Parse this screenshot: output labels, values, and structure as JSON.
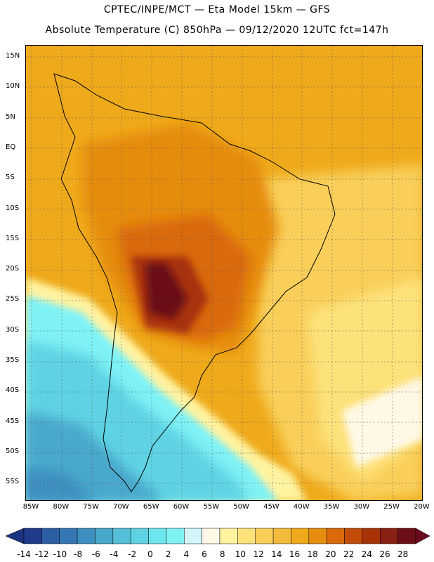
{
  "header": {
    "line1": "CPTEC/INPE/MCT —  Eta Model 15km — GFS",
    "line2": "Absolute Temperature (C) 850hPa — 09/12/2020 12UTC fct=147h"
  },
  "map": {
    "region": "South America",
    "lat_labels": [
      "15N",
      "10N",
      "5N",
      "EQ",
      "5S",
      "10S",
      "15S",
      "20S",
      "25S",
      "30S",
      "35S",
      "40S",
      "45S",
      "50S",
      "55S"
    ],
    "lon_labels": [
      "85W",
      "80W",
      "75W",
      "70W",
      "65W",
      "60W",
      "55W",
      "50W",
      "45W",
      "40W",
      "35W",
      "30W",
      "25W",
      "20W"
    ]
  },
  "colorbar": {
    "labels": [
      "-14",
      "-12",
      "-10",
      "-8",
      "-6",
      "-4",
      "-2",
      "0",
      "2",
      "4",
      "6",
      "8",
      "10",
      "12",
      "14",
      "16",
      "18",
      "20",
      "22",
      "24",
      "26",
      "28"
    ],
    "colors": [
      "#1f3c8c",
      "#2b5ea3",
      "#3477b3",
      "#3c8fc0",
      "#48a8cc",
      "#55c0d8",
      "#5fd3e3",
      "#6fe5ee",
      "#7ff2f6",
      "#d4f6fb",
      "#fff8e6",
      "#fff3a0",
      "#fde27a",
      "#f9cf5a",
      "#f2bb3b",
      "#efaa1b",
      "#e68c0f",
      "#d9690b",
      "#c44c0a",
      "#a73309",
      "#8a1f13",
      "#6b0e16"
    ],
    "low_end_color": "#1a3480",
    "high_end_color": "#6a0a1c"
  }
}
